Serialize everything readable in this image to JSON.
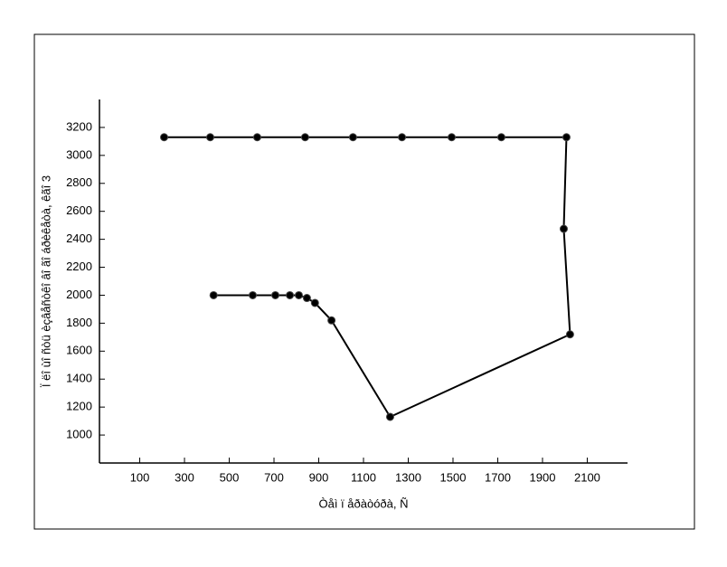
{
  "chart_data": {
    "type": "line",
    "x_label": "Òåì ï åðàòóðà, Ñ",
    "y_label": "Ï ëî ùî ñòü èçâåñòêî âî ãî  áðèêåòà, êãî 3",
    "x": [
      430,
      605,
      706,
      771,
      811,
      847,
      883,
      957,
      1219,
      2023,
      1995,
      2007,
      1716,
      1494,
      1272,
      1053,
      839,
      625,
      415,
      209
    ],
    "series": [
      {
        "color": "#000000",
        "values": [
          2000,
          2000,
          2000,
          2000,
          2000,
          1980,
          1945,
          1820,
          1130,
          1720,
          2475,
          3130,
          3130,
          3130,
          3130,
          3130,
          3130,
          3130,
          3130,
          3130
        ]
      }
    ],
    "xlim": [
      -80,
      2280
    ],
    "ylim": [
      800,
      3400
    ],
    "xticks": [
      100,
      300,
      500,
      700,
      900,
      1100,
      1300,
      1500,
      1700,
      1900,
      2100
    ],
    "yticks": [
      1000,
      1200,
      1400,
      1600,
      1800,
      2000,
      2200,
      2400,
      2600,
      2800,
      3000,
      3200
    ],
    "grid": false
  }
}
